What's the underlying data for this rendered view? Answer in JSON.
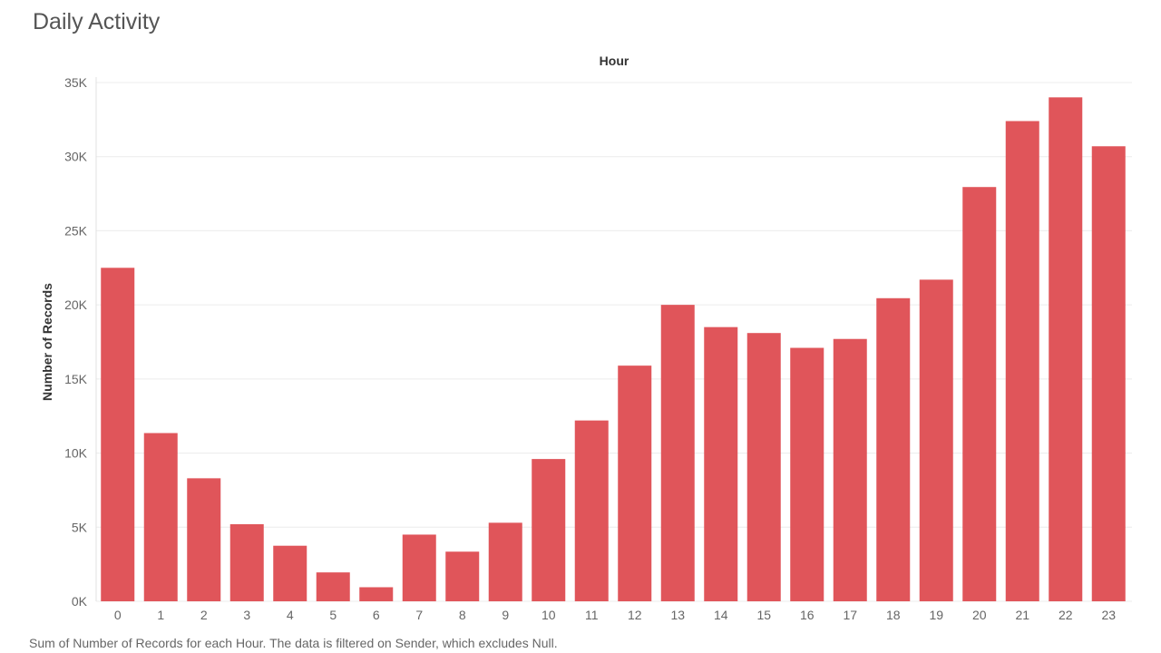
{
  "page": {
    "title": "Daily Activity",
    "footnote": "Sum of Number of Records for each Hour. The data is filtered on Sender, which excludes Null."
  },
  "chart_data": {
    "type": "bar",
    "title": "Daily Activity",
    "xlabel": "Hour",
    "ylabel": "Number of Records",
    "categories": [
      "0",
      "1",
      "2",
      "3",
      "4",
      "5",
      "6",
      "7",
      "8",
      "9",
      "10",
      "11",
      "12",
      "13",
      "14",
      "15",
      "16",
      "17",
      "18",
      "19",
      "20",
      "21",
      "22",
      "23"
    ],
    "values": [
      22500,
      11350,
      8300,
      5200,
      3750,
      1950,
      950,
      4500,
      3350,
      5300,
      9600,
      12200,
      15900,
      20000,
      18500,
      18100,
      17100,
      17700,
      20450,
      21700,
      27950,
      32400,
      34000,
      30700
    ],
    "ylim": [
      0,
      35000
    ],
    "yticks": [
      0,
      5000,
      10000,
      15000,
      20000,
      25000,
      30000,
      35000
    ],
    "ytick_labels": [
      "0K",
      "5K",
      "10K",
      "15K",
      "20K",
      "25K",
      "30K",
      "35K"
    ],
    "bar_color": "#e0555a",
    "grid": true,
    "legend": "none"
  }
}
